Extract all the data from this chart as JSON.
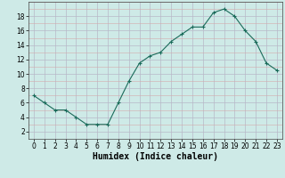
{
  "x": [
    0,
    1,
    2,
    3,
    4,
    5,
    6,
    7,
    8,
    9,
    10,
    11,
    12,
    13,
    14,
    15,
    16,
    17,
    18,
    19,
    20,
    21,
    22,
    23
  ],
  "y": [
    7,
    6,
    5,
    5,
    4,
    3,
    3,
    3,
    6,
    9,
    11.5,
    12.5,
    13,
    14.5,
    15.5,
    16.5,
    16.5,
    18.5,
    19,
    18,
    16,
    14.5,
    11.5,
    10.5
  ],
  "line_color": "#1a6b5a",
  "marker": "+",
  "bg_color": "#ceeae7",
  "xlabel": "Humidex (Indice chaleur)",
  "xlim": [
    -0.5,
    23.5
  ],
  "ylim": [
    1,
    20
  ],
  "yticks": [
    2,
    4,
    6,
    8,
    10,
    12,
    14,
    16,
    18
  ],
  "xticks": [
    0,
    1,
    2,
    3,
    4,
    5,
    6,
    7,
    8,
    9,
    10,
    11,
    12,
    13,
    14,
    15,
    16,
    17,
    18,
    19,
    20,
    21,
    22,
    23
  ],
  "tick_fontsize": 5.5,
  "xlabel_fontsize": 7,
  "major_grid_color": "#b8b8c8",
  "minor_grid_color": "#d4aaaa"
}
